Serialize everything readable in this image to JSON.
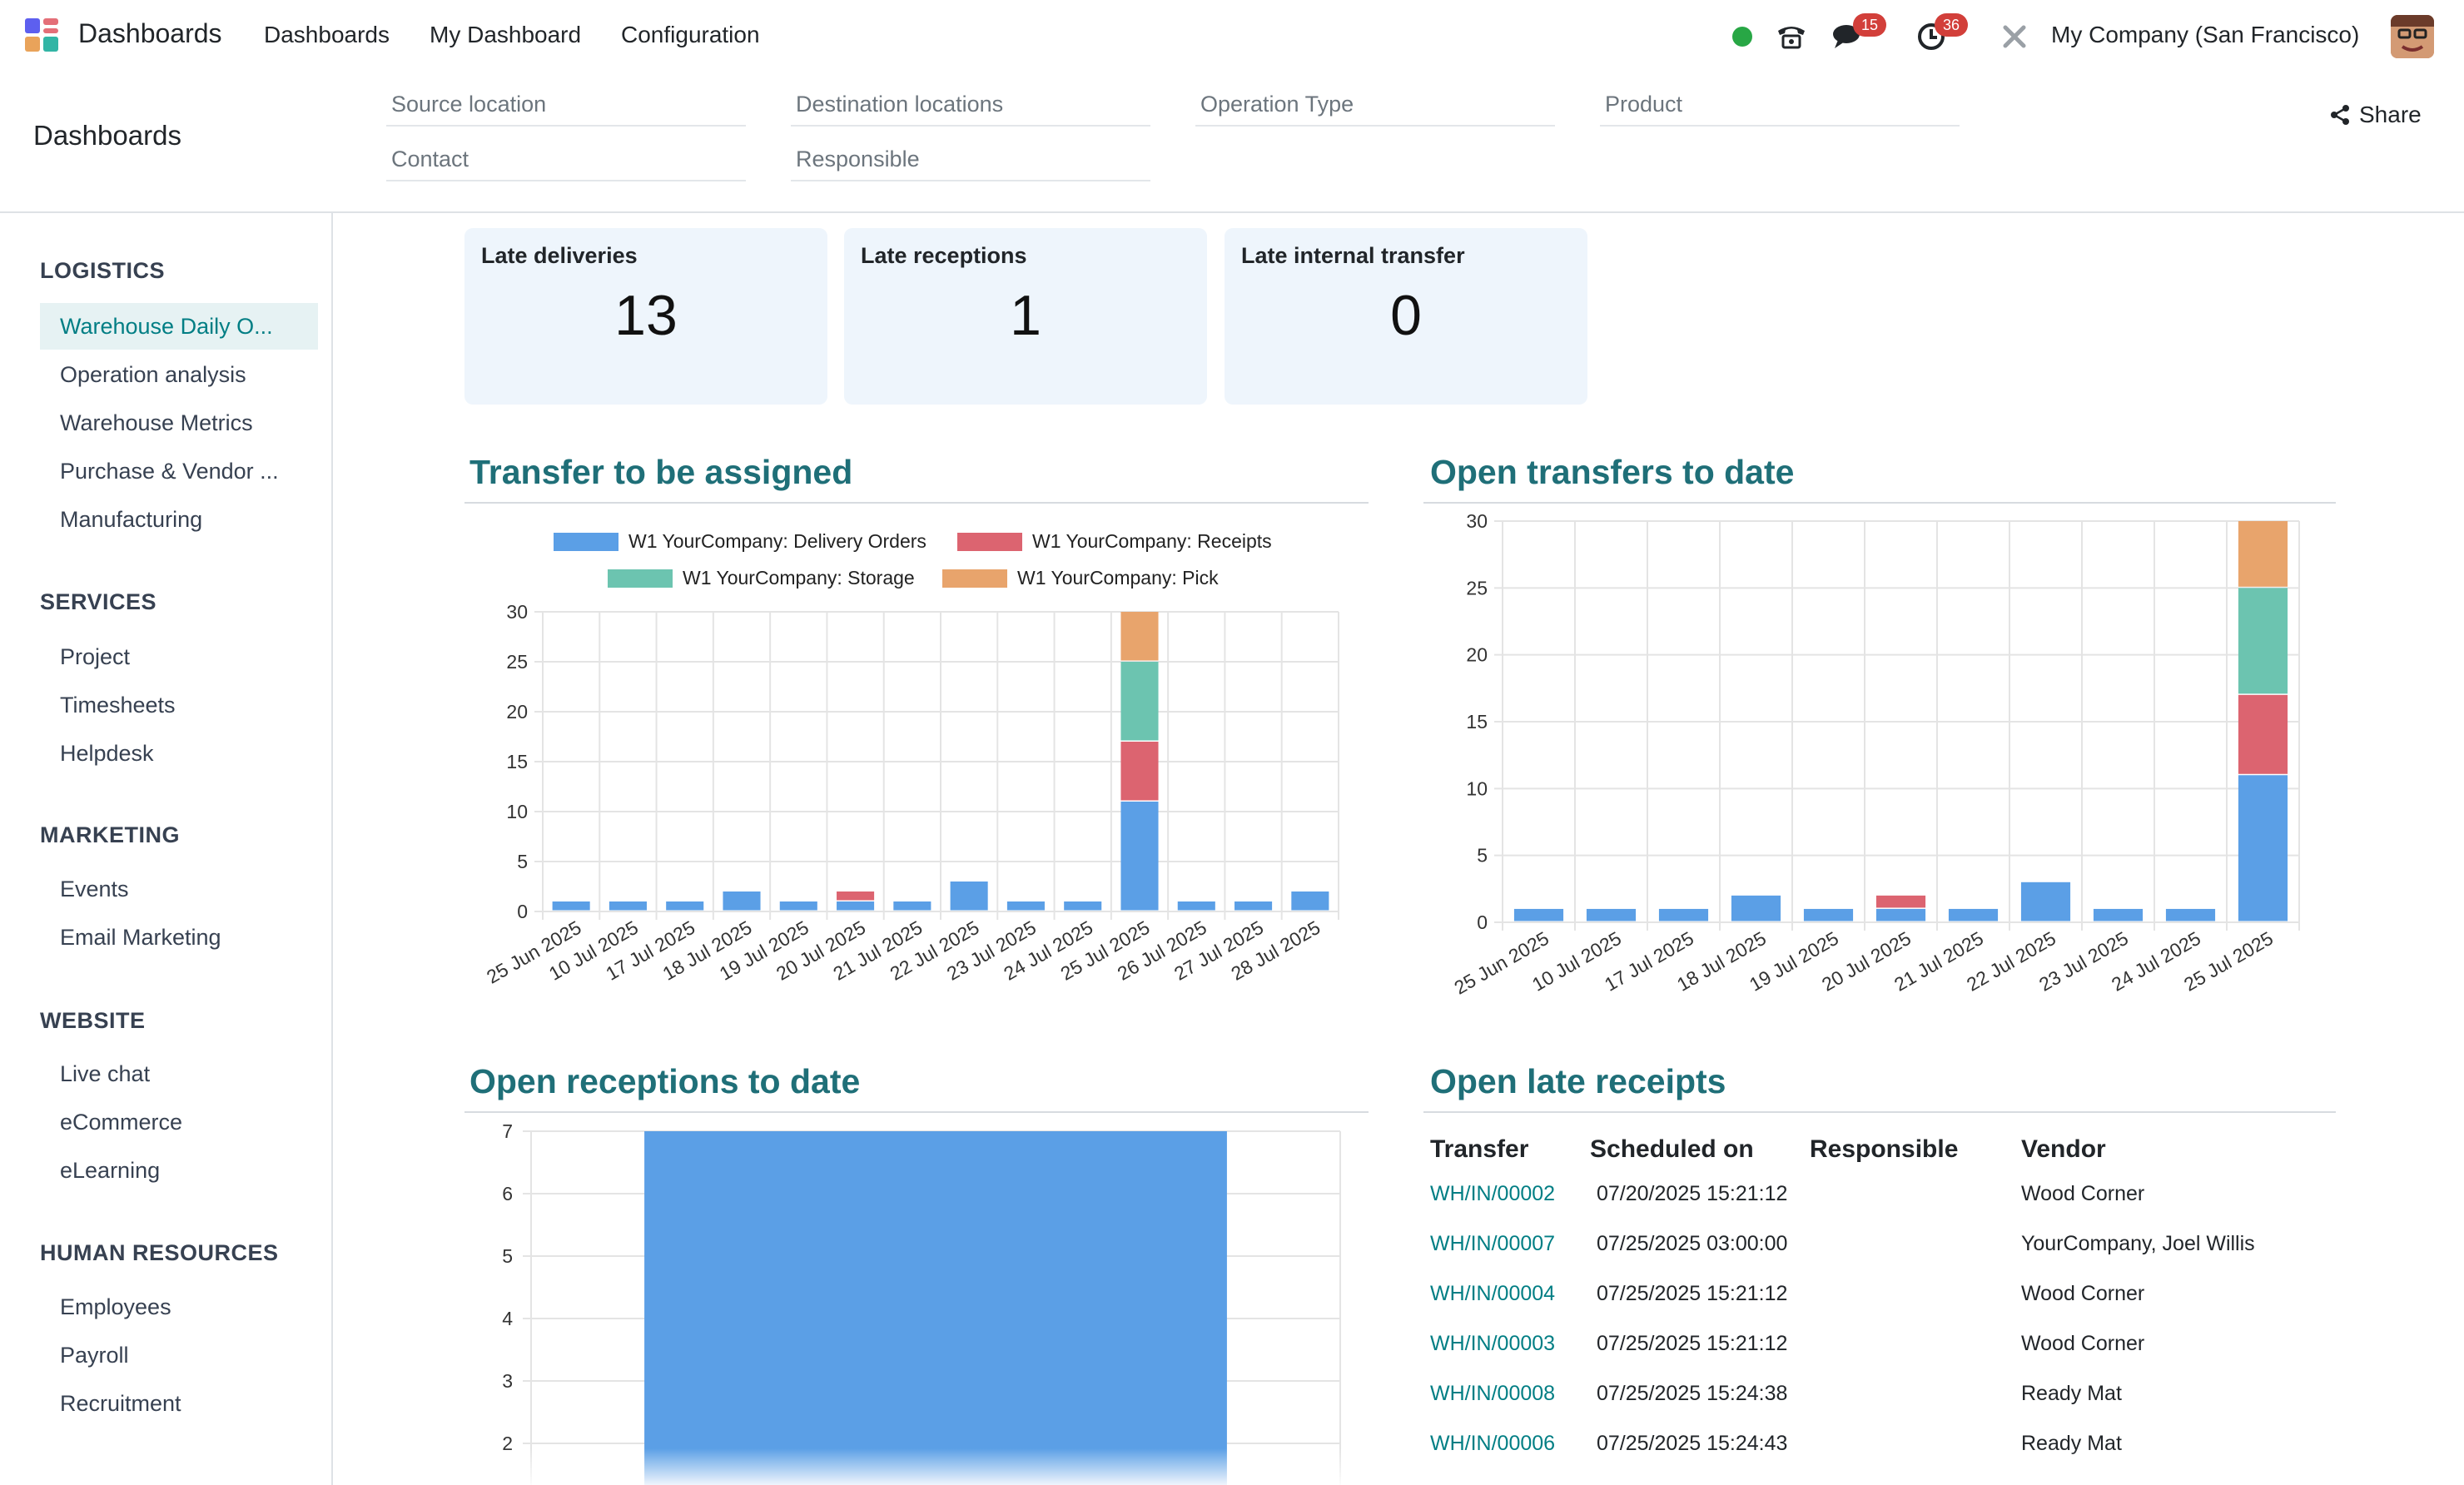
{
  "navbar": {
    "app_name": "Dashboards",
    "menus": [
      "Dashboards",
      "My Dashboard",
      "Configuration"
    ],
    "messages_count": "15",
    "activities_count": "36",
    "company": "My Company (San Francisco)"
  },
  "control_panel": {
    "title": "Dashboards",
    "filters": {
      "source_location": "Source location",
      "destination_locations": "Destination locations",
      "operation_type": "Operation Type",
      "product": "Product",
      "contact": "Contact",
      "responsible": "Responsible"
    },
    "share_label": "Share"
  },
  "sidebar": {
    "sections": [
      {
        "title": "LOGISTICS",
        "items": [
          "Warehouse Daily O...",
          "Operation analysis",
          "Warehouse Metrics",
          "Purchase & Vendor ...",
          "Manufacturing"
        ]
      },
      {
        "title": "SERVICES",
        "items": [
          "Project",
          "Timesheets",
          "Helpdesk"
        ]
      },
      {
        "title": "MARKETING",
        "items": [
          "Events",
          "Email Marketing"
        ]
      },
      {
        "title": "WEBSITE",
        "items": [
          "Live chat",
          "eCommerce",
          "eLearning"
        ]
      },
      {
        "title": "HUMAN RESOURCES",
        "items": [
          "Employees",
          "Payroll",
          "Recruitment"
        ]
      }
    ]
  },
  "kpis": [
    {
      "title": "Late deliveries",
      "value": "13"
    },
    {
      "title": "Late receptions",
      "value": "1"
    },
    {
      "title": "Late internal transfer",
      "value": "0"
    }
  ],
  "panels": {
    "transfer_to_be_assigned": "Transfer to be assigned",
    "open_transfers_to_date": "Open transfers to date",
    "open_receptions_to_date": "Open receptions to date",
    "open_late_receipts": "Open late receipts"
  },
  "colors": {
    "delivery": "#5b9fe6",
    "receipts": "#dc6470",
    "storage": "#6cc4b0",
    "pick": "#e8a46c",
    "accent": "#017e84",
    "title": "#1f6f78"
  },
  "chart_data": [
    {
      "type": "bar",
      "stacked": true,
      "title": "Transfer to be assigned",
      "categories": [
        "25 Jun 2025",
        "10 Jul 2025",
        "17 Jul 2025",
        "18 Jul 2025",
        "19 Jul 2025",
        "20 Jul 2025",
        "21 Jul 2025",
        "22 Jul 2025",
        "23 Jul 2025",
        "24 Jul 2025",
        "25 Jul 2025",
        "26 Jul 2025",
        "27 Jul 2025",
        "28 Jul 2025"
      ],
      "series": [
        {
          "name": "W1 YourCompany: Delivery Orders",
          "color": "#5b9fe6",
          "values": [
            1,
            1,
            1,
            2,
            1,
            1,
            1,
            3,
            1,
            1,
            11,
            1,
            1,
            2
          ]
        },
        {
          "name": "W1 YourCompany: Receipts",
          "color": "#dc6470",
          "values": [
            0,
            0,
            0,
            0,
            0,
            1,
            0,
            0,
            0,
            0,
            6,
            0,
            0,
            0
          ]
        },
        {
          "name": "W1 YourCompany: Storage",
          "color": "#6cc4b0",
          "values": [
            0,
            0,
            0,
            0,
            0,
            0,
            0,
            0,
            0,
            0,
            8,
            0,
            0,
            0
          ]
        },
        {
          "name": "W1 YourCompany: Pick",
          "color": "#e8a46c",
          "values": [
            0,
            0,
            0,
            0,
            0,
            0,
            0,
            0,
            0,
            0,
            5,
            0,
            0,
            0
          ]
        }
      ],
      "ylim": [
        0,
        30
      ],
      "yticks": [
        0,
        5,
        10,
        15,
        20,
        25,
        30
      ],
      "legend": "top",
      "grid": true
    },
    {
      "type": "bar",
      "stacked": true,
      "title": "Open transfers to date",
      "categories": [
        "25 Jun 2025",
        "10 Jul 2025",
        "17 Jul 2025",
        "18 Jul 2025",
        "19 Jul 2025",
        "20 Jul 2025",
        "21 Jul 2025",
        "22 Jul 2025",
        "23 Jul 2025",
        "24 Jul 2025",
        "25 Jul 2025"
      ],
      "series": [
        {
          "color": "#5b9fe6",
          "values": [
            1,
            1,
            1,
            2,
            1,
            1,
            1,
            3,
            1,
            1,
            11
          ]
        },
        {
          "color": "#dc6470",
          "values": [
            0,
            0,
            0,
            0,
            0,
            1,
            0,
            0,
            0,
            0,
            6
          ]
        },
        {
          "color": "#6cc4b0",
          "values": [
            0,
            0,
            0,
            0,
            0,
            0,
            0,
            0,
            0,
            0,
            8
          ]
        },
        {
          "color": "#e8a46c",
          "values": [
            0,
            0,
            0,
            0,
            0,
            0,
            0,
            0,
            0,
            0,
            5
          ]
        }
      ],
      "ylim": [
        0,
        30
      ],
      "yticks": [
        0,
        5,
        10,
        15,
        20,
        25,
        30
      ],
      "legend": "none",
      "grid": true
    },
    {
      "type": "bar",
      "title": "Open receptions to date",
      "categories": [
        ""
      ],
      "series": [
        {
          "color": "#5b9fe6",
          "values": [
            7
          ]
        }
      ],
      "ylim": [
        1.4,
        7
      ],
      "yticks": [
        2,
        3,
        4,
        5,
        6,
        7
      ],
      "legend": "none",
      "grid": true
    }
  ],
  "late_receipts_table": {
    "headers": [
      "Transfer",
      "Scheduled on",
      "Responsible",
      "Vendor"
    ],
    "rows": [
      {
        "transfer": "WH/IN/00002",
        "scheduled": "07/20/2025 15:21:12",
        "responsible": "",
        "vendor": "Wood Corner"
      },
      {
        "transfer": "WH/IN/00007",
        "scheduled": "07/25/2025 03:00:00",
        "responsible": "",
        "vendor": "YourCompany, Joel Willis"
      },
      {
        "transfer": "WH/IN/00004",
        "scheduled": "07/25/2025 15:21:12",
        "responsible": "",
        "vendor": "Wood Corner"
      },
      {
        "transfer": "WH/IN/00003",
        "scheduled": "07/25/2025 15:21:12",
        "responsible": "",
        "vendor": "Wood Corner"
      },
      {
        "transfer": "WH/IN/00008",
        "scheduled": "07/25/2025 15:24:38",
        "responsible": "",
        "vendor": "Ready Mat"
      },
      {
        "transfer": "WH/IN/00006",
        "scheduled": "07/25/2025 15:24:43",
        "responsible": "",
        "vendor": "Ready Mat"
      }
    ]
  }
}
